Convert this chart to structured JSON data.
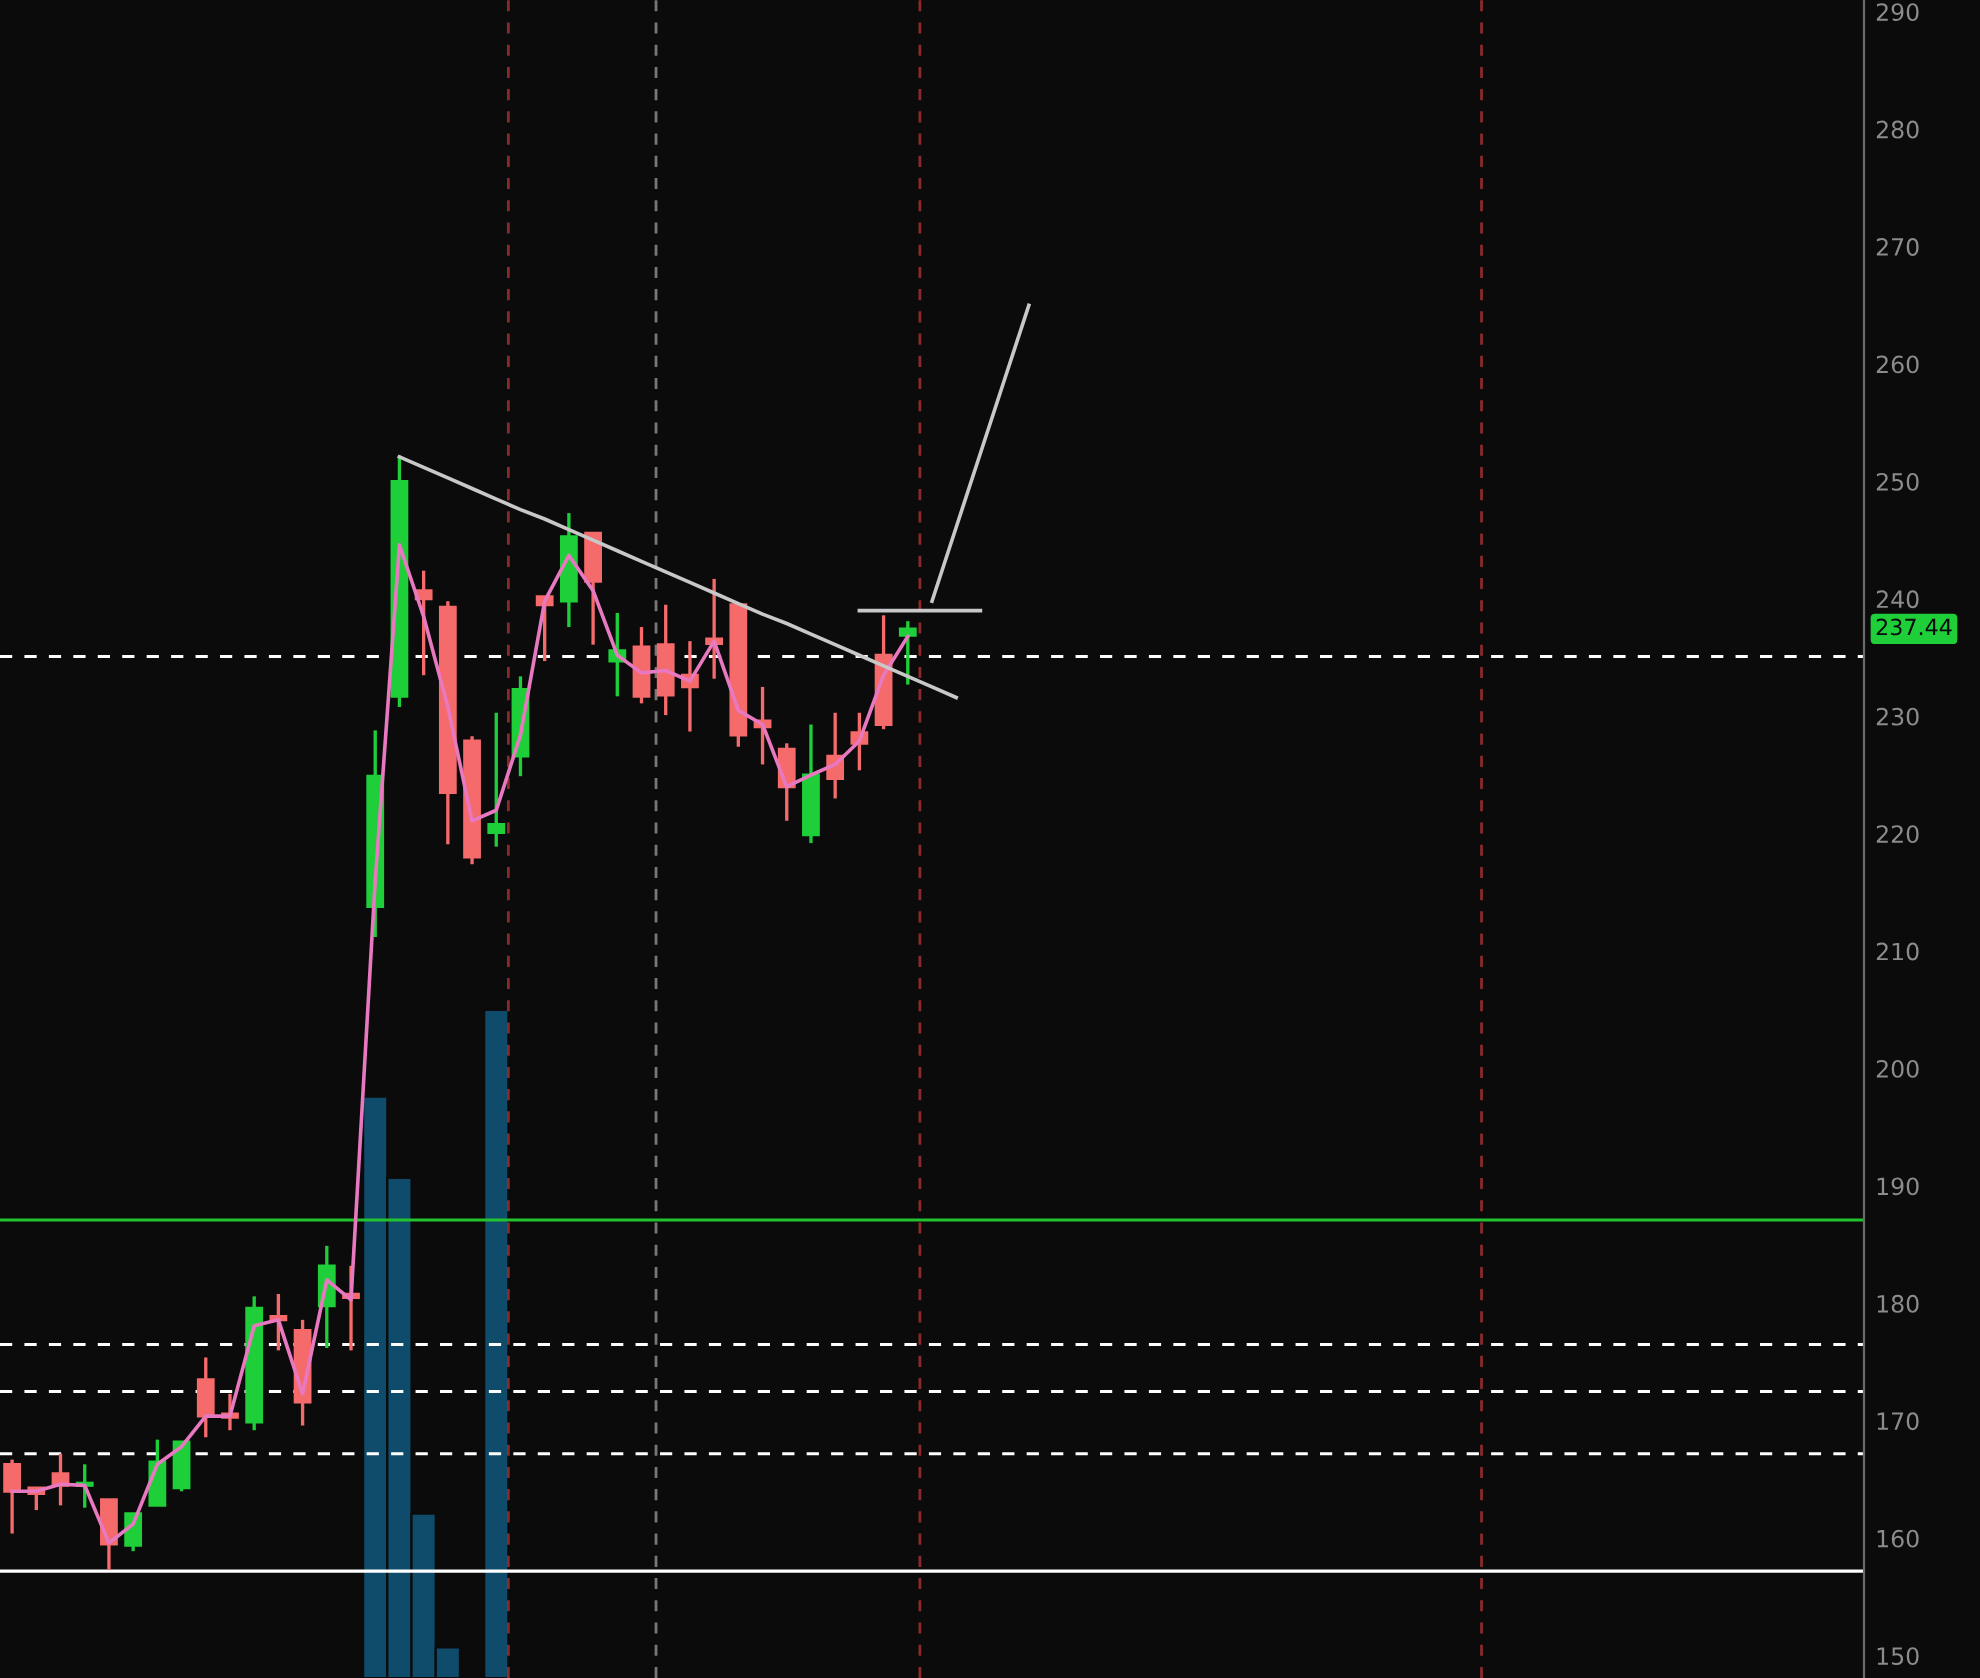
{
  "chart_data": {
    "type": "candlestick",
    "categories": [
      null,
      null,
      null,
      null,
      null,
      null,
      null,
      null,
      null,
      null,
      null,
      null,
      null,
      null,
      null,
      null,
      null,
      null,
      null,
      null,
      null,
      null,
      null,
      null,
      null,
      null,
      null,
      null,
      null,
      null,
      null,
      null,
      null,
      null,
      null,
      null,
      null,
      null,
      null,
      null,
      null,
      null,
      null,
      null,
      null,
      null,
      null,
      null,
      null,
      null,
      null,
      null,
      null,
      null,
      null,
      null,
      null,
      null,
      null,
      null,
      null,
      null,
      null,
      null,
      null,
      null,
      null,
      null,
      null,
      null,
      null,
      null,
      null,
      null,
      null,
      null,
      null
    ],
    "ohlc": [
      [
        166.3,
        166.7,
        160.4,
        164.0
      ],
      [
        164.3,
        164.3,
        162.4,
        163.8
      ],
      [
        165.5,
        167.2,
        162.8,
        164.5
      ],
      [
        164.5,
        166.3,
        162.6,
        164.7
      ],
      [
        163.3,
        163.3,
        157.3,
        159.5
      ],
      [
        159.4,
        162.1,
        158.9,
        162.1
      ],
      [
        162.8,
        168.4,
        162.8,
        166.5
      ],
      [
        164.3,
        168.2,
        164.0,
        168.2
      ],
      [
        173.5,
        175.4,
        168.6,
        170.4
      ],
      [
        170.6,
        172.3,
        169.2,
        170.3
      ],
      [
        169.9,
        180.6,
        169.2,
        179.6
      ],
      [
        178.9,
        180.8,
        176.0,
        178.6
      ],
      [
        177.7,
        178.6,
        169.6,
        171.6
      ],
      [
        179.8,
        184.9,
        176.2,
        183.2
      ],
      [
        180.8,
        183.2,
        176.0,
        180.5
      ],
      [
        213.8,
        228.8,
        211.2,
        224.9
      ],
      [
        231.7,
        252.2,
        230.8,
        250.0
      ],
      [
        240.7,
        242.4,
        233.5,
        240.0
      ],
      [
        239.3,
        239.8,
        219.1,
        223.5
      ],
      [
        227.9,
        228.3,
        217.4,
        218.0
      ],
      [
        220.1,
        230.3,
        218.9,
        220.8
      ],
      [
        226.6,
        233.4,
        224.9,
        232.3
      ],
      [
        240.2,
        240.2,
        234.7,
        239.5
      ],
      [
        239.8,
        247.3,
        237.6,
        245.3
      ],
      [
        245.6,
        245.6,
        236.1,
        241.5
      ],
      [
        234.7,
        238.8,
        231.7,
        235.6
      ],
      [
        235.9,
        237.6,
        231.1,
        231.7
      ],
      [
        236.1,
        239.5,
        230.1,
        231.8
      ],
      [
        233.5,
        236.4,
        228.7,
        232.5
      ],
      [
        236.6,
        241.7,
        233.2,
        236.2
      ],
      [
        239.5,
        239.5,
        227.4,
        228.4
      ],
      [
        229.6,
        232.5,
        225.9,
        229.1
      ],
      [
        227.2,
        227.7,
        221.1,
        224.0
      ],
      [
        219.9,
        229.3,
        219.2,
        225.0
      ],
      [
        226.6,
        230.3,
        223.0,
        224.7
      ],
      [
        228.6,
        230.3,
        225.4,
        227.7
      ],
      [
        235.2,
        238.6,
        228.9,
        229.3
      ],
      [
        236.9,
        238.1,
        232.7,
        237.44
      ],
      null,
      null,
      null,
      null,
      null,
      null,
      null,
      null,
      null,
      null,
      null,
      null,
      null,
      null,
      null,
      null,
      null,
      null,
      null,
      null,
      null,
      null,
      null,
      null,
      null,
      null,
      null,
      null,
      null,
      null,
      null,
      null,
      null,
      null,
      null,
      null,
      null,
      null,
      null
    ],
    "colors": [
      "#f56a6a",
      "#f56a6a",
      "#f56a6a",
      "#1fcf3a",
      "#f56a6a",
      "#1fcf3a",
      "#1fcf3a",
      "#1fcf3a",
      "#f56a6a",
      "#f56a6a",
      "#1fcf3a",
      "#f56a6a",
      "#f56a6a",
      "#1fcf3a",
      "#f56a6a",
      "#1fcf3a",
      "#1fcf3a",
      "#f56a6a",
      "#f56a6a",
      "#f56a6a",
      "#1fcf3a",
      "#1fcf3a",
      "#f56a6a",
      "#1fcf3a",
      "#f56a6a",
      "#1fcf3a",
      "#f56a6a",
      "#f56a6a",
      "#f56a6a",
      "#f56a6a",
      "#f56a6a",
      "#f56a6a",
      "#f56a6a",
      "#1fcf3a",
      "#f56a6a",
      "#f56a6a",
      "#f56a6a",
      "#1fcf3a",
      null,
      null,
      null,
      null,
      null,
      null,
      null,
      null,
      null,
      null,
      null,
      null,
      null,
      null,
      null,
      null,
      null,
      null,
      null,
      null,
      null,
      null,
      null,
      null,
      null,
      null,
      null,
      null,
      null,
      null,
      null,
      null,
      null,
      null,
      null,
      null,
      null,
      null,
      null
    ],
    "series": [
      {
        "type": "bar",
        "color": "#0f4c6b",
        "base": [
          null,
          null,
          null,
          null,
          null,
          null,
          null,
          null,
          null,
          null,
          null,
          null,
          null,
          null,
          null,
          148.1,
          148.1,
          148.1,
          148.1,
          null,
          148.1,
          null,
          null,
          null,
          null,
          null,
          null,
          null,
          null,
          null,
          null,
          null,
          null,
          null,
          null,
          null,
          null,
          null,
          null,
          null,
          null,
          null,
          null,
          null,
          null,
          null,
          null,
          null,
          null,
          null,
          null,
          null,
          null,
          null,
          null,
          null,
          null,
          null,
          null,
          null,
          null,
          null,
          null,
          null,
          null,
          null,
          null,
          null,
          null,
          null,
          null,
          null,
          null,
          null,
          null,
          null,
          null
        ],
        "values": [
          null,
          null,
          null,
          null,
          null,
          null,
          null,
          null,
          null,
          null,
          null,
          null,
          null,
          null,
          null,
          49.5,
          42.6,
          14.0,
          2.6,
          null,
          56.9,
          null,
          null,
          null,
          null,
          null,
          null,
          null,
          null,
          null,
          null,
          null,
          null,
          null,
          null,
          null,
          null,
          null,
          null,
          null,
          null,
          null,
          null,
          null,
          null,
          null,
          null,
          null,
          null,
          null,
          null,
          null,
          null,
          null,
          null,
          null,
          null,
          null,
          null,
          null,
          null,
          null,
          null,
          null,
          null,
          null,
          null,
          null,
          null,
          null,
          null,
          null,
          null,
          null,
          null,
          null,
          null
        ]
      },
      {
        "type": "line",
        "color": "#e878c0",
        "values": [
          164.0,
          164.0,
          164.6,
          164.5,
          159.6,
          161.2,
          166.3,
          167.8,
          170.4,
          170.4,
          178.1,
          178.6,
          172.3,
          182.0,
          180.3,
          216.0,
          244.6,
          238.5,
          230.8,
          221.1,
          222.0,
          228.4,
          239.8,
          243.7,
          240.7,
          235.2,
          233.7,
          233.9,
          233.0,
          236.4,
          230.5,
          229.3,
          224.0,
          225.0,
          225.9,
          227.9,
          233.5,
          236.8,
          null,
          null,
          null,
          null,
          null,
          null,
          null,
          null,
          null,
          null,
          null,
          null,
          null,
          null,
          null,
          null,
          null,
          null,
          null,
          null,
          null,
          null,
          null,
          null,
          null,
          null,
          null,
          null,
          null,
          null,
          null,
          null,
          null,
          null,
          null,
          null,
          null,
          null,
          null
        ]
      },
      {
        "type": "line",
        "color": "#c8c8c8",
        "values": [
          null,
          null,
          null,
          null,
          null,
          null,
          null,
          null,
          null,
          null,
          null,
          null,
          null,
          null,
          null,
          null,
          252.1,
          251.2,
          250.3,
          249.4,
          248.5,
          247.6,
          246.8,
          245.9,
          245.0,
          244.1,
          243.2,
          242.3,
          241.4,
          240.5,
          239.6,
          238.7,
          237.9,
          237.0,
          236.1,
          235.2,
          234.3,
          233.4,
          232.5,
          231.6,
          null,
          null,
          null,
          null,
          null,
          null,
          null,
          null,
          null,
          null,
          null,
          null,
          null,
          null,
          null,
          null,
          null,
          null,
          null,
          null,
          null,
          null,
          null,
          null,
          null,
          null,
          null,
          null,
          null,
          null,
          null,
          null,
          null,
          null,
          null,
          null,
          null
        ]
      },
      {
        "type": "line",
        "color": "#c8c8c8",
        "values": [
          null,
          null,
          null,
          null,
          null,
          null,
          null,
          null,
          null,
          null,
          null,
          null,
          null,
          null,
          null,
          null,
          null,
          null,
          null,
          null,
          null,
          null,
          null,
          null,
          null,
          null,
          null,
          null,
          null,
          null,
          null,
          null,
          null,
          null,
          null,
          239.0,
          239.0,
          239.0,
          239.0,
          239.0,
          239.0,
          null,
          null,
          null,
          null,
          null,
          null,
          null,
          null,
          null,
          null,
          null,
          null,
          null,
          null,
          null,
          null,
          null,
          null,
          null,
          null,
          null,
          null,
          null,
          null,
          null,
          null,
          null,
          null,
          null,
          null,
          null,
          null,
          null,
          null,
          null,
          null
        ]
      },
      {
        "type": "line",
        "color": "#c8c8c8",
        "values": [
          null,
          null,
          null,
          null,
          null,
          null,
          null,
          null,
          null,
          null,
          null,
          null,
          null,
          null,
          null,
          null,
          null,
          null,
          null,
          null,
          null,
          null,
          null,
          null,
          null,
          null,
          null,
          null,
          null,
          null,
          null,
          null,
          null,
          null,
          null,
          null,
          null,
          null,
          239.8,
          246.1,
          252.4,
          258.7,
          265.0,
          null,
          null,
          null,
          null,
          null,
          null,
          null,
          null,
          null,
          null,
          null,
          null,
          null,
          null,
          null,
          null,
          null,
          null,
          null,
          null,
          null,
          null,
          null,
          null,
          null,
          null,
          null,
          null,
          null,
          null,
          null,
          null,
          null,
          null
        ]
      }
    ],
    "ref_lines": [
      {
        "axis": "y",
        "value": 235.1,
        "color": "#ffffff",
        "line_style": "dashed"
      },
      {
        "axis": "y",
        "value": 187.1,
        "color": "#22c32e",
        "line_style": "solid"
      },
      {
        "axis": "y",
        "value": 176.5,
        "color": "#ffffff",
        "line_style": "dashed"
      },
      {
        "axis": "y",
        "value": 172.5,
        "color": "#ffffff",
        "line_style": "dashed"
      },
      {
        "axis": "y",
        "value": 167.2,
        "color": "#ffffff",
        "line_style": "dashed"
      },
      {
        "axis": "y",
        "value": 157.2,
        "color": "#ffffff",
        "line_style": "solid"
      }
    ],
    "annotations": [
      "237.44"
    ],
    "ylim": [
      148.1,
      291
    ],
    "yticks": [
      150,
      160,
      170,
      180,
      190,
      200,
      210,
      220,
      230,
      240,
      250,
      260,
      270,
      280,
      290
    ],
    "tick_labels": "y",
    "grid": false
  }
}
